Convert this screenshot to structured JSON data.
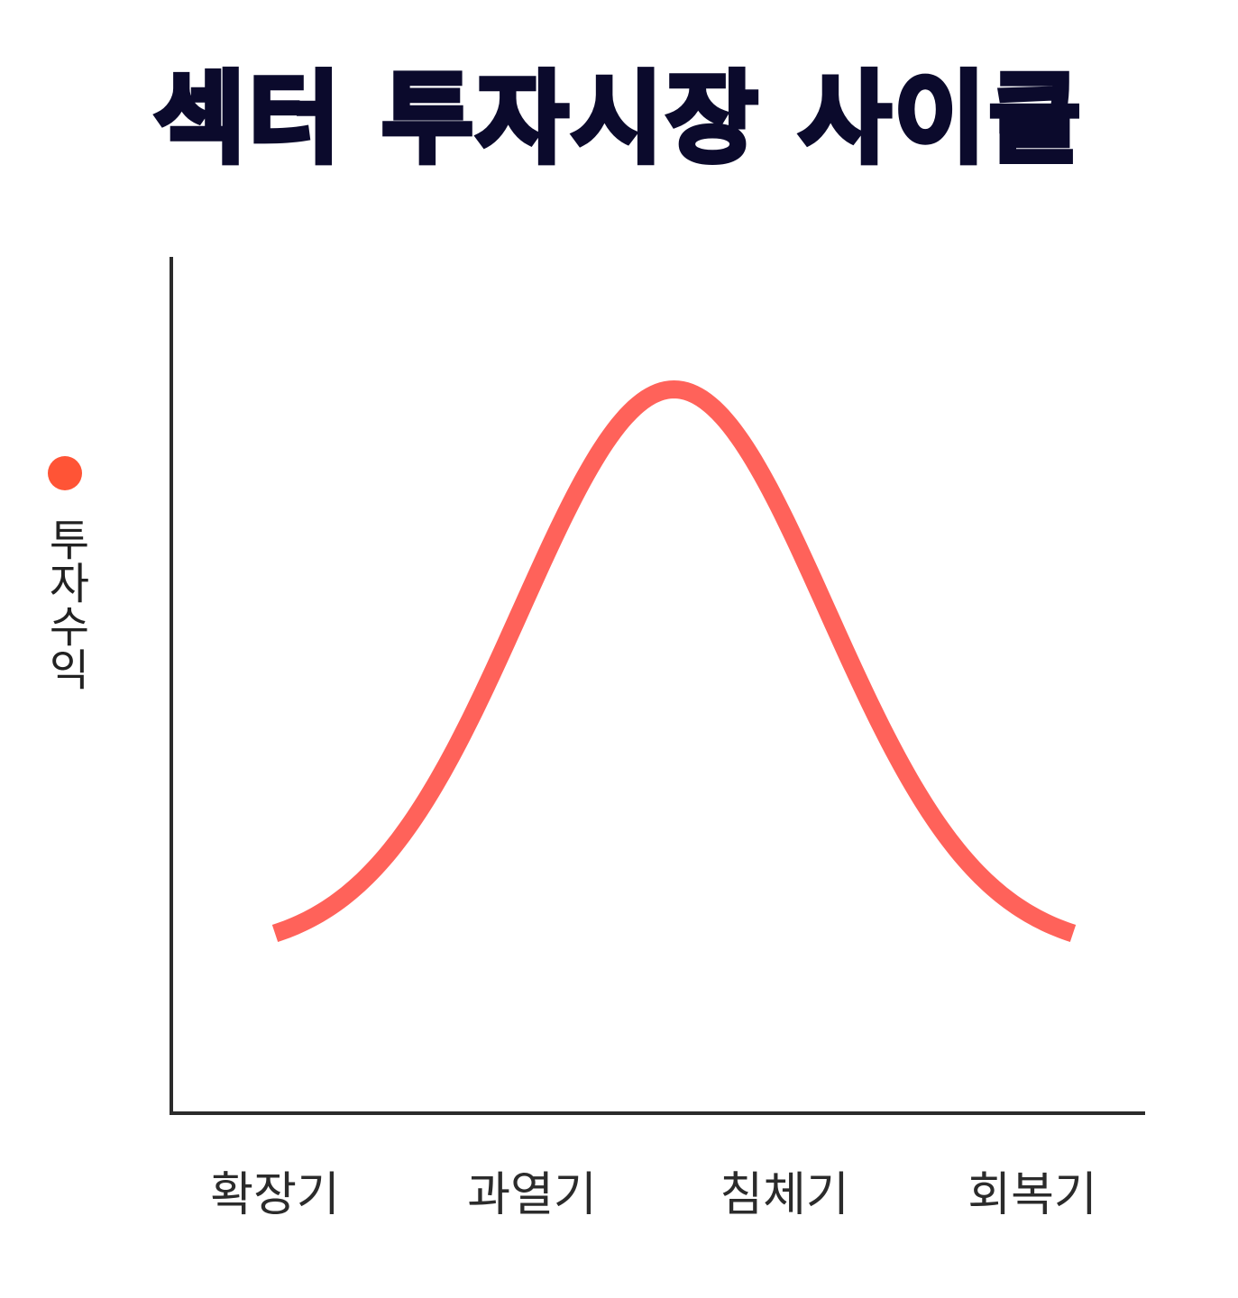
{
  "title": "섹터 투자시장 사이클",
  "colors": {
    "title": "#0b0a2c",
    "curve": "#ff625a",
    "legend_dot": "#ff5436",
    "axis": "#2b2b2b"
  },
  "chart_data": {
    "type": "line",
    "title": "섹터 투자시장 사이클",
    "ylabel": "투자수익",
    "xlabel": "",
    "categories": [
      "확장기",
      "과열기",
      "침체기",
      "회복기"
    ],
    "y_ticks_shown": false,
    "grid": false,
    "legend": "left",
    "series": [
      {
        "shape": "bell curve",
        "x": [
          0,
          0.5,
          1,
          1.5,
          2,
          2.5,
          3,
          3.5,
          4
        ],
        "y": [
          0.08,
          0.22,
          0.58,
          0.93,
          1.0,
          0.93,
          0.58,
          0.22,
          0.08
        ]
      }
    ]
  }
}
